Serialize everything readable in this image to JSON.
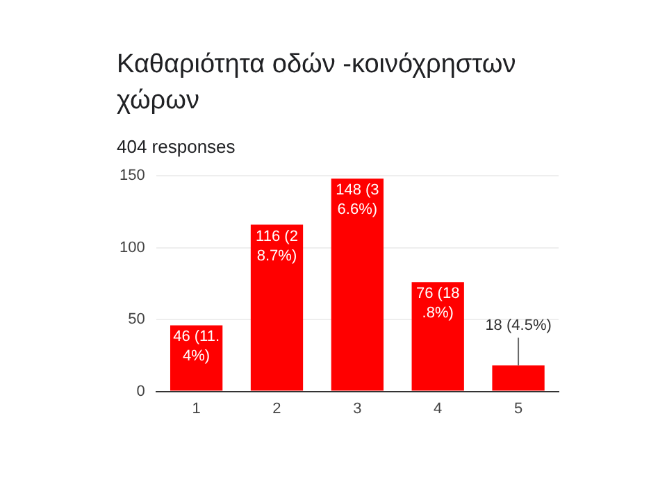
{
  "chart_data": {
    "type": "bar",
    "title": "Καθαριότητα οδών -κοινόχρηστων χώρων",
    "subtitle": "404 responses",
    "categories": [
      "1",
      "2",
      "3",
      "4",
      "5"
    ],
    "values": [
      46,
      116,
      148,
      76,
      18
    ],
    "value_labels": [
      "46 (11.4%)",
      "116 (28.7%)",
      "148 (36.6%)",
      "76 (18.8%)",
      "18 (4.5%)"
    ],
    "color": "#ff0000",
    "ylim": [
      0,
      150
    ],
    "yticks": [
      0,
      50,
      100,
      150
    ],
    "grid": "y",
    "legend": false
  }
}
